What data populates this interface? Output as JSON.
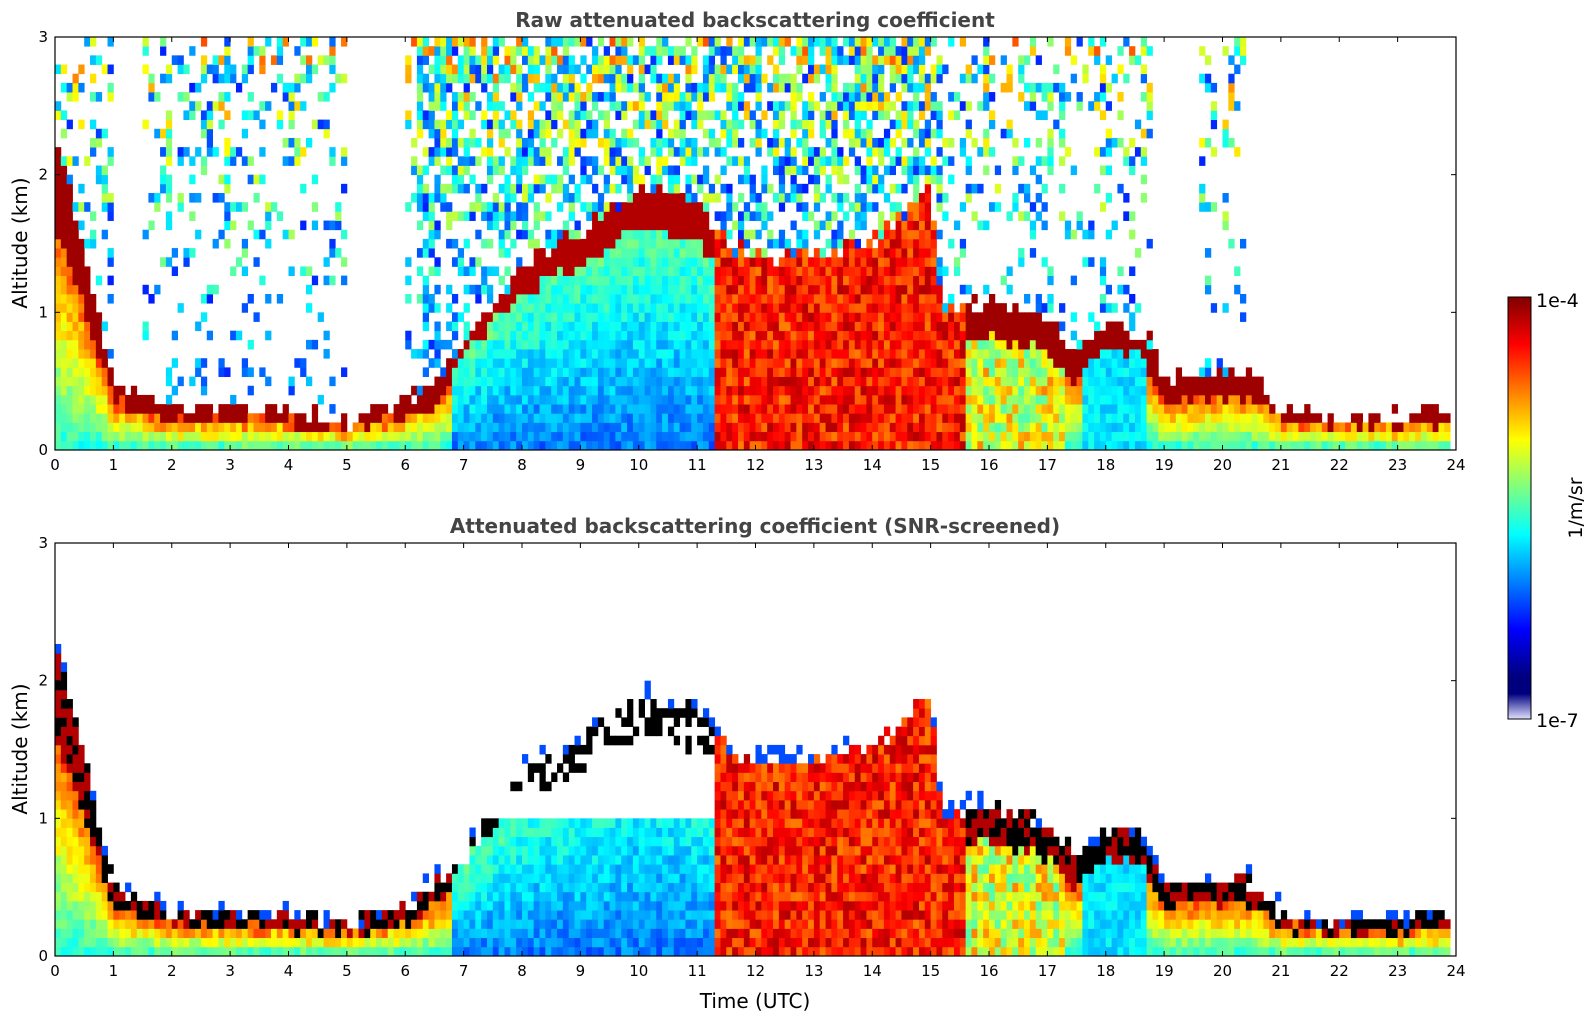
{
  "colors": {
    "colormap": [
      "#00007f",
      "#0000ff",
      "#007fff",
      "#00ffff",
      "#7fff7f",
      "#ffff00",
      "#ff7f00",
      "#ff0000",
      "#7f0000"
    ],
    "colormap_faint_low": "#e0e0ff",
    "missing": "#ffffff",
    "cloud_screened": "#000000"
  },
  "colorbar": {
    "max_label": "1e-4",
    "min_label": "1e-7",
    "unit_label": "1/m/sr",
    "scale": "log"
  },
  "chart_data": [
    {
      "type": "heatmap",
      "title": "Raw attenuated backscattering coefficient",
      "xlabel": "",
      "ylabel": "Altitude (km)",
      "xlim": [
        0,
        24
      ],
      "ylim": [
        0,
        3
      ],
      "xticks": [
        "0",
        "1",
        "2",
        "3",
        "4",
        "5",
        "6",
        "7",
        "8",
        "9",
        "10",
        "11",
        "12",
        "13",
        "14",
        "15",
        "16",
        "17",
        "18",
        "19",
        "20",
        "21",
        "22",
        "23",
        "24"
      ],
      "yticks": [
        "0",
        "1",
        "2",
        "3"
      ],
      "value_range": [
        1e-07,
        0.0001
      ],
      "layer_top_km": {
        "time": [
          0,
          0.5,
          1,
          2,
          3,
          4,
          5,
          5.5,
          6,
          6.5,
          7,
          8,
          9,
          10,
          11,
          11.5,
          12,
          13,
          14,
          15,
          15.2,
          16,
          17,
          17.5,
          18,
          18.7,
          19,
          20,
          20.5,
          21,
          22,
          23,
          23.8
        ],
        "altitude": [
          2.3,
          1.45,
          0.5,
          0.3,
          0.3,
          0.3,
          0.2,
          0.3,
          0.35,
          0.5,
          0.8,
          1.35,
          1.6,
          1.9,
          1.8,
          1.5,
          1.4,
          1.45,
          1.5,
          1.9,
          1.0,
          1.1,
          0.95,
          0.7,
          0.9,
          0.85,
          0.5,
          0.55,
          0.55,
          0.3,
          0.25,
          0.25,
          0.3
        ]
      }
    },
    {
      "type": "heatmap",
      "title": "Attenuated backscattering coefficient (SNR-screened)",
      "xlabel": "Time (UTC)",
      "ylabel": "Altitude (km)",
      "xlim": [
        0,
        24
      ],
      "ylim": [
        0,
        3
      ],
      "xticks": [
        "0",
        "1",
        "2",
        "3",
        "4",
        "5",
        "6",
        "7",
        "8",
        "9",
        "10",
        "11",
        "12",
        "13",
        "14",
        "15",
        "16",
        "17",
        "18",
        "19",
        "20",
        "21",
        "22",
        "23",
        "24"
      ],
      "yticks": [
        "0",
        "1",
        "2",
        "3"
      ],
      "value_range": [
        1e-07,
        0.0001
      ]
    }
  ]
}
